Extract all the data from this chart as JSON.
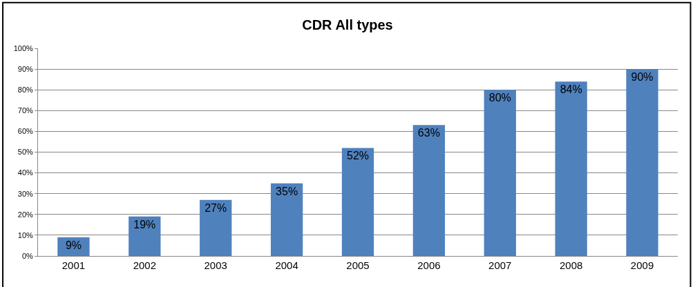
{
  "chart_data": {
    "type": "bar",
    "title": "CDR All types",
    "categories": [
      "2001",
      "2002",
      "2003",
      "2004",
      "2005",
      "2006",
      "2007",
      "2008",
      "2009"
    ],
    "values": [
      9,
      19,
      27,
      35,
      52,
      63,
      80,
      84,
      90
    ],
    "value_labels": [
      "9%",
      "19%",
      "27%",
      "35%",
      "52%",
      "63%",
      "80%",
      "84%",
      "90%"
    ],
    "color": "#4f81bd",
    "ylim": [
      0,
      100
    ],
    "yticks": [
      {
        "value": 0,
        "label": "0%"
      },
      {
        "value": 10,
        "label": "10%"
      },
      {
        "value": 20,
        "label": "20%"
      },
      {
        "value": 30,
        "label": "30%"
      },
      {
        "value": 40,
        "label": "40%"
      },
      {
        "value": 50,
        "label": "50%"
      },
      {
        "value": 60,
        "label": "60%"
      },
      {
        "value": 70,
        "label": "70%"
      },
      {
        "value": 80,
        "label": "80%"
      },
      {
        "value": 90,
        "label": "90%"
      },
      {
        "value": 100,
        "label": "100%"
      }
    ],
    "grid": "y",
    "legend": false
  }
}
